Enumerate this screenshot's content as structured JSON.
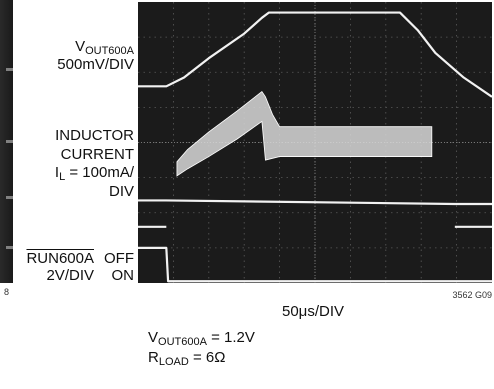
{
  "left_labels": {
    "vout_prefix": "V",
    "vout_sub": "OUT600A",
    "vout_scale": "500mV/DIV",
    "il_line1": "INDUCTOR",
    "il_line2": "CURRENT",
    "il_prefix": "I",
    "il_sub": "L",
    "il_scale_tail": " = 100mA/",
    "il_div": "DIV",
    "run_name": "RUN600A",
    "run_off": "OFF",
    "run_scale": "2V/DIV",
    "run_on": "ON"
  },
  "chart_data": {
    "type": "line",
    "x_unit_per_div": "50μs/DIV",
    "divisions": {
      "x": 10,
      "y": 8
    },
    "grid": true,
    "background": "#1b1b1b",
    "trace_color": "#f2f2f2",
    "series": [
      {
        "channel": "vout",
        "x": [
          0,
          0.8,
          1.3,
          2,
          3,
          3.5,
          3.7,
          7.4,
          7.9,
          8.4,
          9.2,
          10
        ],
        "y": [
          5.6,
          5.6,
          5.85,
          6.4,
          7.1,
          7.55,
          7.7,
          7.7,
          7.2,
          6.55,
          5.85,
          5.3
        ]
      },
      {
        "channel": "inductor_current",
        "x": [
          1.1,
          1.4,
          2,
          2.8,
          3.5,
          3.6,
          3.8,
          4.0,
          4.3,
          8.3
        ],
        "upper": [
          3.45,
          3.8,
          4.3,
          4.9,
          5.45,
          5.3,
          4.8,
          4.45,
          4.45,
          4.45
        ],
        "lower": [
          3.05,
          3.25,
          3.6,
          4.1,
          4.6,
          3.5,
          3.55,
          3.6,
          3.6,
          3.6
        ]
      },
      {
        "channel": "run_off_level",
        "x": [
          0,
          0.8,
          8.95,
          10
        ],
        "y": [
          2.35,
          2.35,
          2.25,
          2.25
        ]
      },
      {
        "channel": "run_on_level",
        "x": [
          0,
          0.8
        ],
        "y": [
          1.6,
          1.6
        ]
      },
      {
        "channel": "run_on_level_right",
        "x": [
          8.95,
          10
        ],
        "y": [
          1.6,
          1.6
        ]
      },
      {
        "channel": "run600a",
        "x": [
          0,
          0.8,
          0.85,
          10
        ],
        "y": [
          1.0,
          1.0,
          0.05,
          0.05
        ]
      }
    ]
  },
  "x_scale_label": "50μs/DIV",
  "figure_id": "3562 G09",
  "left_fig_id": "8",
  "conditions": {
    "vout_prefix": "V",
    "vout_sub": "OUT600A",
    "vout_value": " = 1.2V",
    "rload_prefix": "R",
    "rload_sub": "LOAD",
    "rload_value": " = 6Ω"
  }
}
